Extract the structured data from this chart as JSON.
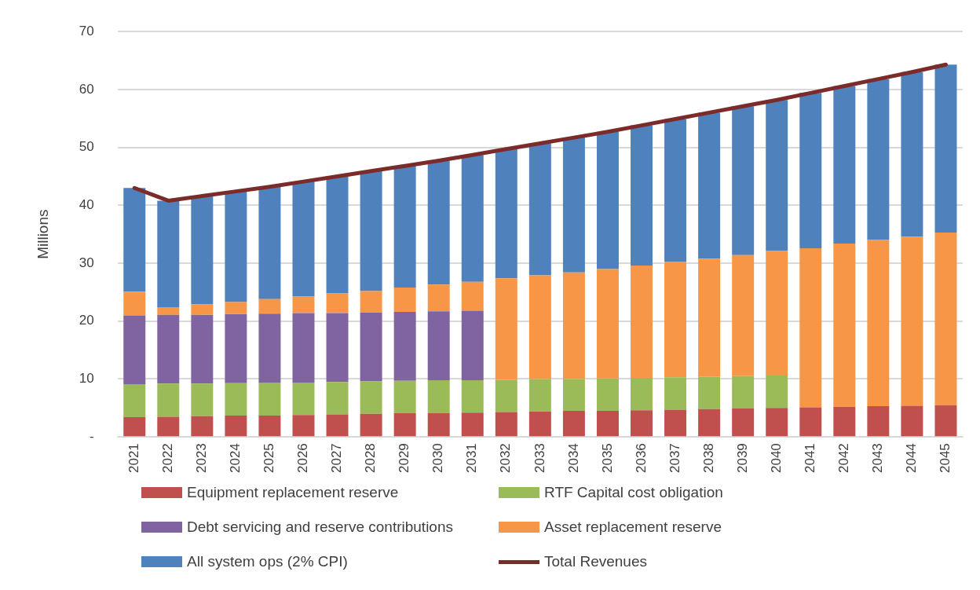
{
  "chart_data": {
    "type": "bar",
    "stacked": true,
    "ylabel": "Millions",
    "categories": [
      "2021",
      "2022",
      "2023",
      "2024",
      "2025",
      "2026",
      "2027",
      "2028",
      "2029",
      "2030",
      "2031",
      "2032",
      "2033",
      "2034",
      "2035",
      "2036",
      "2037",
      "2038",
      "2039",
      "2040",
      "2041",
      "2042",
      "2043",
      "2044",
      "2045"
    ],
    "ylim": [
      0,
      70
    ],
    "yticks": [
      {
        "value": 0,
        "label": "-"
      },
      10,
      20,
      30,
      40,
      50,
      60,
      70
    ],
    "grid": "y",
    "legend": "bottom",
    "marker": "none",
    "series": [
      {
        "name": "Equipment replacement reserve",
        "color": "#c0504d",
        "values": [
          3.4,
          3.5,
          3.6,
          3.7,
          3.7,
          3.8,
          3.9,
          4.0,
          4.1,
          4.1,
          4.2,
          4.3,
          4.4,
          4.5,
          4.5,
          4.6,
          4.7,
          4.8,
          4.9,
          5.0,
          5.1,
          5.2,
          5.3,
          5.4,
          5.5
        ]
      },
      {
        "name": "RTF Capital cost obligation",
        "color": "#9bbb59",
        "values": [
          5.7,
          5.7,
          5.6,
          5.6,
          5.7,
          5.6,
          5.6,
          5.6,
          5.6,
          5.7,
          5.6,
          5.6,
          5.6,
          5.5,
          5.6,
          5.6,
          5.6,
          5.6,
          5.6,
          5.6,
          0,
          0,
          0,
          0,
          0
        ]
      },
      {
        "name": "Debt servicing and reserve contributions",
        "color": "#8064a2",
        "values": [
          11.9,
          11.9,
          11.9,
          11.9,
          11.9,
          12.0,
          11.9,
          11.9,
          11.9,
          11.9,
          12.0,
          0,
          0,
          0,
          0,
          0,
          0,
          0,
          0,
          0,
          0,
          0,
          0,
          0,
          0
        ]
      },
      {
        "name": "Asset replacement reserve",
        "color": "#f79646",
        "values": [
          4.1,
          1.3,
          1.8,
          2.1,
          2.5,
          2.9,
          3.4,
          3.7,
          4.2,
          4.6,
          5.0,
          17.5,
          17.9,
          18.4,
          18.9,
          19.4,
          19.9,
          20.4,
          20.9,
          21.5,
          27.5,
          28.2,
          28.7,
          29.2,
          29.8
        ]
      },
      {
        "name": "All system ops (2% CPI)",
        "color": "#4f81bd",
        "values": [
          17.9,
          18.4,
          18.7,
          19.1,
          19.4,
          19.8,
          20.2,
          20.7,
          21.0,
          21.4,
          21.9,
          22.3,
          22.8,
          23.3,
          23.7,
          24.2,
          24.7,
          25.2,
          25.7,
          26.1,
          26.8,
          27.2,
          27.8,
          28.4,
          29.0
        ]
      },
      {
        "name": "Total Revenues",
        "type": "line",
        "color": "#7b2c2a",
        "values": [
          43.0,
          40.8,
          41.6,
          42.4,
          43.2,
          44.1,
          45.0,
          45.9,
          46.8,
          47.7,
          48.7,
          49.7,
          50.7,
          51.7,
          52.7,
          53.8,
          54.9,
          56.0,
          57.1,
          58.2,
          59.4,
          60.6,
          61.8,
          63.0,
          64.3
        ]
      }
    ]
  }
}
